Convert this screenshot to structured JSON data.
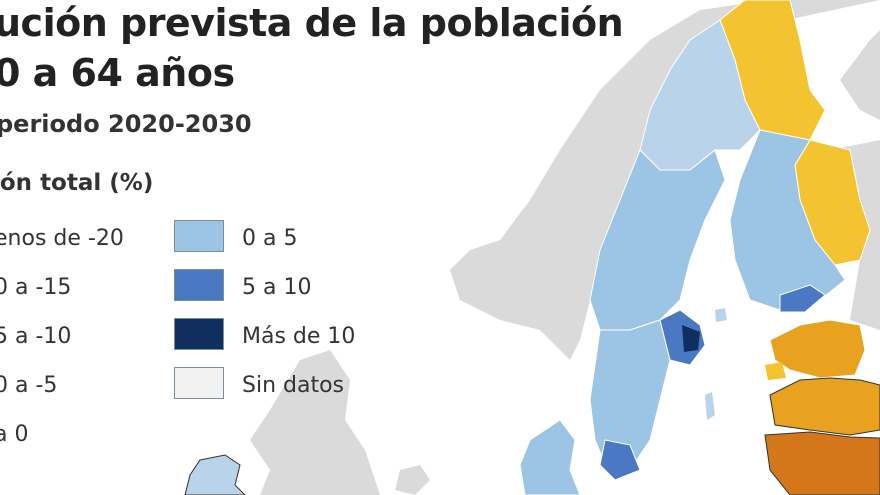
{
  "header": {
    "title_line1": "ución prevista de la población",
    "title_line2": "0 a 64 años",
    "subtitle": "periodo 2020-2030"
  },
  "legend": {
    "title": "ión total (%)",
    "left_column": [
      {
        "label": "enos de -20"
      },
      {
        "label": "0 a -15"
      },
      {
        "label": "5 a -10"
      },
      {
        "label": "0 a -5"
      },
      {
        "label": "a 0"
      }
    ],
    "right_column": [
      {
        "label": "0 a 5",
        "color": "#9cc4e4"
      },
      {
        "label": "5 a 10",
        "color": "#4a78c2"
      },
      {
        "label": "Más de 10",
        "color": "#0f2f5f"
      },
      {
        "label": "Sin datos",
        "color": "#f2f2f2"
      }
    ]
  },
  "colors": {
    "background_land": "#dadada",
    "sea": "#ffffff",
    "positive_light": "#b8d3ea",
    "positive_mid": "#9cc4e4",
    "positive_strong": "#4a78c2",
    "positive_max": "#0f2f5f",
    "decline_light": "#f4c430",
    "decline_mid": "#e8a21f",
    "decline_strong": "#d4761a"
  }
}
